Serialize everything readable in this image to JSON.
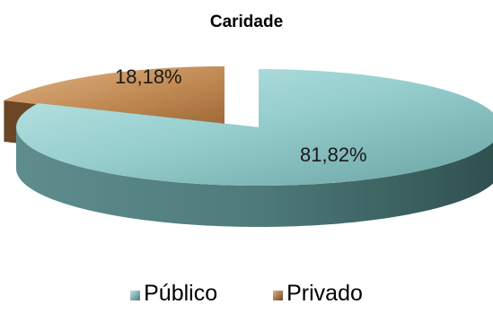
{
  "chart_data": {
    "type": "pie",
    "title": "Caridade",
    "categories": [
      "Público",
      "Privado"
    ],
    "values": [
      81.82,
      18.18
    ],
    "data_labels": [
      "81,82%",
      "18,18%"
    ],
    "colors": [
      "#8fc8c8",
      "#c9935e"
    ],
    "exploded_slice": "Privado",
    "legend_position": "bottom"
  }
}
